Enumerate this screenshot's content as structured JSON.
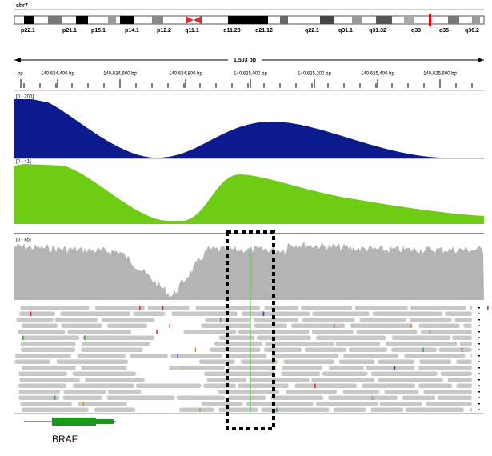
{
  "chromosome": "chr7",
  "cytobands": [
    "p22.1",
    "p21.1",
    "p15.1",
    "p14.1",
    "p12.2",
    "q11.1",
    "q11.23",
    "q21.12",
    "q22.1",
    "q31.1",
    "q31.32",
    "q33",
    "q35",
    "q36.2"
  ],
  "region_width": "1,503 bp",
  "ruler_labels": [
    "bp",
    "140,624,400 bp",
    "140,624,600 bp",
    "140,624,800 bp",
    "140,625,000 bp",
    "140,625,200 bp",
    "140,625,400 bp",
    "140,625,600 bp"
  ],
  "tracks": [
    {
      "range": "[0 - 200]"
    },
    {
      "range": "[0 - 41]"
    },
    {
      "range": "[0 - 65]"
    }
  ],
  "gene": "BRAF"
}
